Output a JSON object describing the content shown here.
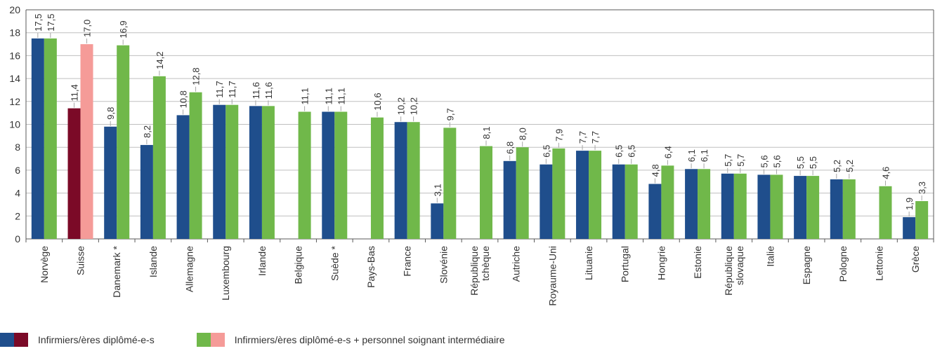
{
  "chart_data": {
    "type": "bar",
    "categories": [
      "Norvège",
      "Suisse",
      "Danemark *",
      "Islande",
      "Allemagne",
      "Luxembourg",
      "Irlande",
      "Belgique",
      "Suède *",
      "Pays-Bas",
      "France",
      "Slovénie",
      "République\ntchèque",
      "Autriche",
      "Royaume-Uni",
      "Lituanie",
      "Portugal",
      "Hongrie",
      "Estonie",
      "République\nslovaque",
      "Italie",
      "Espagne",
      "Pologne",
      "Lettonie",
      "Grèce"
    ],
    "series": [
      {
        "name": "Infirmiers/ères diplômé-e-s",
        "values": [
          17.5,
          11.4,
          9.8,
          8.2,
          10.8,
          11.7,
          11.6,
          null,
          11.1,
          null,
          10.2,
          3.1,
          null,
          6.8,
          6.5,
          7.7,
          6.5,
          4.8,
          6.1,
          5.7,
          5.6,
          5.5,
          5.2,
          null,
          1.9
        ],
        "labels": [
          "17,5",
          "11,4",
          "9,8",
          "8,2",
          "10,8",
          "11,7",
          "11,6",
          "",
          "11,1",
          "",
          "10,2",
          "3,1",
          "",
          "6,8",
          "6,5",
          "7,7",
          "6,5",
          "4,8",
          "6,1",
          "5,7",
          "5,6",
          "5,5",
          "5,2",
          "",
          "1,9"
        ]
      },
      {
        "name": "Infirmiers/ères diplômé-e-s + personnel soignant intermédiaire",
        "values": [
          17.5,
          17.0,
          16.9,
          14.2,
          12.8,
          11.7,
          11.6,
          11.1,
          11.1,
          10.6,
          10.2,
          9.7,
          8.1,
          8.0,
          7.9,
          7.7,
          6.5,
          6.4,
          6.1,
          5.7,
          5.6,
          5.5,
          5.2,
          4.6,
          3.3
        ],
        "labels": [
          "17,5",
          "17,0",
          "16,9",
          "14,2",
          "12,8",
          "11,7",
          "11,6",
          "11,1",
          "11,1",
          "10,6",
          "10,2",
          "9,7",
          "8,1",
          "8,0",
          "7,9",
          "7,7",
          "6,5",
          "6,4",
          "6,1",
          "5,7",
          "5,6",
          "5,5",
          "5,2",
          "4,6",
          "3,3"
        ]
      }
    ],
    "highlight_category": "Suisse",
    "colors": {
      "series1": "#1f4e8c",
      "series2": "#70b84a",
      "series1_highlight": "#7b0a27",
      "series2_highlight": "#f59b98",
      "grid": "#bfbfbf",
      "axis": "#595959"
    },
    "ylim": [
      0,
      20
    ],
    "yticks": [
      0,
      2,
      4,
      6,
      8,
      10,
      12,
      14,
      16,
      18,
      20
    ],
    "grid": true,
    "legend_position": "bottom-left",
    "title": "",
    "xlabel": "",
    "ylabel": ""
  },
  "legend": [
    {
      "label": "Infirmiers/ères diplômé-e-s",
      "colors": [
        "#1f4e8c",
        "#7b0a27"
      ]
    },
    {
      "label": "Infirmiers/ères diplômé-e-s + personnel soignant intermédiaire",
      "colors": [
        "#70b84a",
        "#f59b98"
      ]
    }
  ]
}
